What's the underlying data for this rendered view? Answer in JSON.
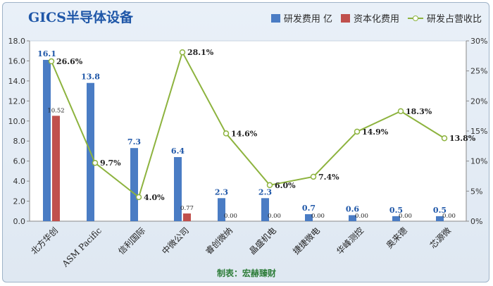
{
  "chart_data": {
    "type": "bar+line",
    "title": "GICS半导体设备",
    "categories": [
      "北方华创",
      "ASM Pacific",
      "信利国际",
      "中微公司",
      "睿创微纳",
      "晶盛机电",
      "捷捷微电",
      "华峰测控",
      "奥来德",
      "芯源微"
    ],
    "series": [
      {
        "name": "研发费用 亿",
        "type": "bar",
        "axis": "left",
        "color": "#4a7cc4",
        "values": [
          16.1,
          13.8,
          7.3,
          6.4,
          2.3,
          2.3,
          0.7,
          0.6,
          0.5,
          0.5
        ],
        "labels": [
          "16.1",
          "13.8",
          "7.3",
          "6.4",
          "2.3",
          "2.3",
          "0.7",
          "0.6",
          "0.5",
          "0.5"
        ]
      },
      {
        "name": "资本化费用",
        "type": "bar",
        "axis": "left",
        "color": "#c0504d",
        "values": [
          10.52,
          0,
          0,
          0.77,
          0,
          0,
          0,
          0,
          0,
          0
        ],
        "labels": [
          "10.52",
          "",
          "",
          "0.77",
          "0.00",
          "0.00",
          "0.00",
          "0.00",
          "0.00",
          "0.00"
        ]
      },
      {
        "name": "研发占营收比",
        "type": "line",
        "axis": "right",
        "color": "#8db33e",
        "values": [
          26.6,
          9.7,
          4.0,
          28.1,
          14.6,
          6.0,
          7.4,
          14.9,
          18.3,
          13.8
        ],
        "labels": [
          "26.6%",
          "9.7%",
          "4.0%",
          "28.1%",
          "14.6%",
          "6.0%",
          "7.4%",
          "14.9%",
          "18.3%",
          "13.8%"
        ]
      }
    ],
    "left_axis": {
      "min": 0,
      "max": 18,
      "ticks": [
        "0.0",
        "2.0",
        "4.0",
        "6.0",
        "8.0",
        "10.0",
        "12.0",
        "14.0",
        "16.0",
        "18.0"
      ]
    },
    "right_axis": {
      "min": 0,
      "max": 30,
      "ticks": [
        "0%",
        "5%",
        "10%",
        "15%",
        "20%",
        "25%",
        "30%"
      ]
    },
    "grid": false,
    "legend": "top-right"
  },
  "footer": "制表：宏赫臻财"
}
